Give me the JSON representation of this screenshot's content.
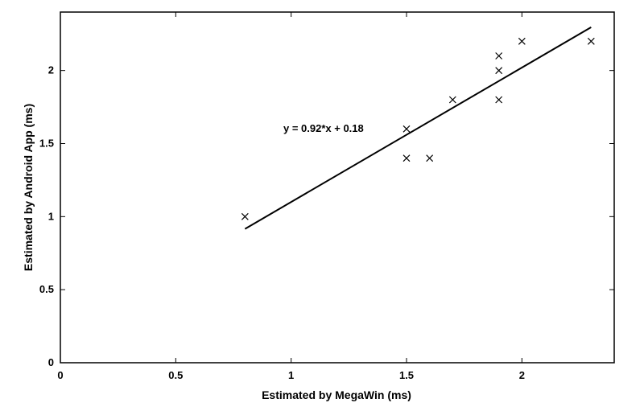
{
  "chart_data": {
    "type": "scatter",
    "xlabel": "Estimated by MegaWin (ms)",
    "ylabel": "Estimated by Android App (ms)",
    "xlim": [
      0,
      2.4
    ],
    "ylim": [
      0,
      2.4
    ],
    "xticks": [
      0,
      0.5,
      1,
      1.5,
      2
    ],
    "yticks": [
      0,
      0.5,
      1,
      1.5,
      2
    ],
    "xtick_labels": [
      "0",
      "0.5",
      "1",
      "1.5",
      "2"
    ],
    "ytick_labels": [
      "0",
      "0.5",
      "1",
      "1.5",
      "2"
    ],
    "grid": false,
    "marker": "x",
    "points": [
      {
        "x": 0.8,
        "y": 1.0
      },
      {
        "x": 1.5,
        "y": 1.6
      },
      {
        "x": 1.5,
        "y": 1.4
      },
      {
        "x": 1.6,
        "y": 1.4
      },
      {
        "x": 1.7,
        "y": 1.8
      },
      {
        "x": 1.9,
        "y": 2.1
      },
      {
        "x": 1.9,
        "y": 2.0
      },
      {
        "x": 1.9,
        "y": 1.8
      },
      {
        "x": 2.0,
        "y": 2.2
      },
      {
        "x": 2.3,
        "y": 2.2
      }
    ],
    "fit_line": {
      "slope": 0.92,
      "intercept": 0.18,
      "x_range": [
        0.8,
        2.3
      ],
      "equation": "y = 0.92*x + 0.18"
    }
  }
}
